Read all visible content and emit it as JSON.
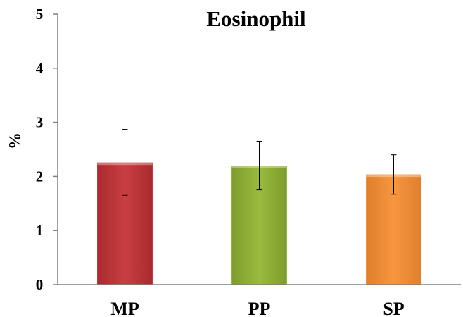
{
  "chart_data": {
    "type": "bar",
    "title": "Eosinophil",
    "xlabel": "",
    "ylabel": "%",
    "ylim": [
      0,
      5
    ],
    "yticks": [
      "0",
      "1",
      "2",
      "3",
      "4",
      "5"
    ],
    "categories": [
      "MP",
      "PP",
      "SP"
    ],
    "values": [
      2.25,
      2.19,
      2.03
    ],
    "error_upper": [
      2.87,
      2.65,
      2.4
    ],
    "error_lower": [
      1.65,
      1.75,
      1.67
    ],
    "colors": [
      "#c0393b",
      "#93b33a",
      "#f5903a"
    ],
    "grid": false,
    "legend": "none"
  }
}
